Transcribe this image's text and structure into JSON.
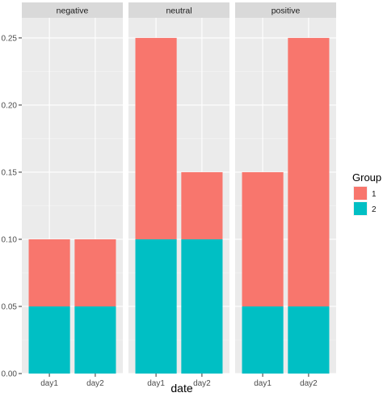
{
  "chart_data": {
    "type": "bar",
    "stacked": true,
    "faceted": true,
    "xlabel": "date",
    "ylabel": "",
    "ylim": [
      0,
      0.265
    ],
    "yticks": [
      "0.00",
      "0.05",
      "0.10",
      "0.15",
      "0.20",
      "0.25"
    ],
    "categories": [
      "day1",
      "day2"
    ],
    "grid": true,
    "legend_position": "right",
    "legend": {
      "title": "Group",
      "entries": [
        {
          "label": "1",
          "color": "#F8766D"
        },
        {
          "label": "2",
          "color": "#00BFC4"
        }
      ]
    },
    "facets": [
      {
        "label": "negative",
        "series": [
          {
            "name": "1",
            "values": [
              0.05,
              0.05
            ]
          },
          {
            "name": "2",
            "values": [
              0.05,
              0.05
            ]
          }
        ]
      },
      {
        "label": "neutral",
        "series": [
          {
            "name": "1",
            "values": [
              0.15,
              0.05
            ]
          },
          {
            "name": "2",
            "values": [
              0.1,
              0.1
            ]
          }
        ]
      },
      {
        "label": "positive",
        "series": [
          {
            "name": "1",
            "values": [
              0.1,
              0.2
            ]
          },
          {
            "name": "2",
            "values": [
              0.05,
              0.05
            ]
          }
        ]
      }
    ],
    "colors": {
      "panel_bg": "#EBEBEB",
      "strip_bg": "#D9D9D9",
      "grid_major": "#FFFFFF",
      "grid_minor": "#F5F5F5",
      "text": "#4D4D4D",
      "title": "#000000",
      "series_1": "#F8766D",
      "series_2": "#00BFC4"
    }
  }
}
